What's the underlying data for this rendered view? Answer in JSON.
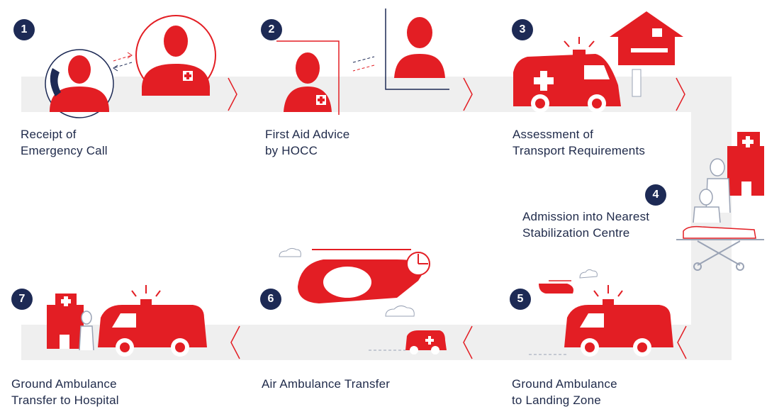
{
  "colors": {
    "accent": "#e31e24",
    "navy": "#1d2a55",
    "track": "#efefef",
    "outline": "#9aa3b5"
  },
  "steps": [
    {
      "number": "1",
      "line1": "Receipt of",
      "line2": "Emergency Call"
    },
    {
      "number": "2",
      "line1": "First Aid Advice",
      "line2": "by HOCC"
    },
    {
      "number": "3",
      "line1": "Assessment of",
      "line2": "Transport Requirements"
    },
    {
      "number": "4",
      "line1": "Admission into Nearest",
      "line2": "Stabilization Centre"
    },
    {
      "number": "5",
      "line1": "Ground Ambulance",
      "line2": "to Landing Zone"
    },
    {
      "number": "6",
      "line1": "Air Ambulance Transfer",
      "line2": ""
    },
    {
      "number": "7",
      "line1": "Ground Ambulance",
      "line2": "Transfer to Hospital"
    }
  ],
  "icons": [
    "operator-phone-icon",
    "operator-headset-icon",
    "doctor-silhouette-icon",
    "ambulance-icon",
    "house-patient-icon",
    "hospital-building-icon",
    "stretcher-icon",
    "helicopter-icon",
    "cloud-icon",
    "chevron-right-icon",
    "chevron-left-icon"
  ]
}
